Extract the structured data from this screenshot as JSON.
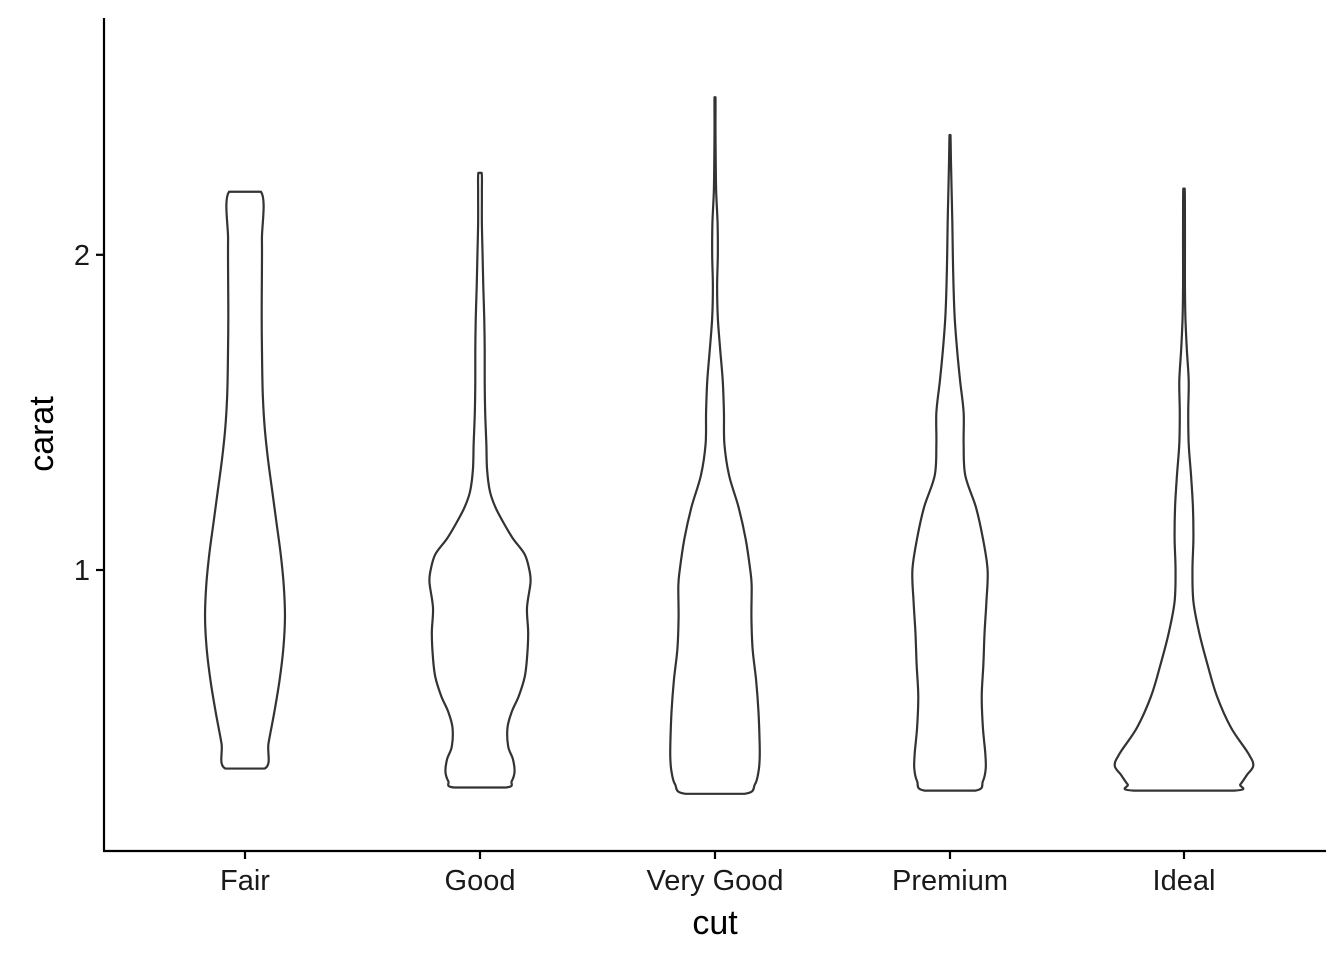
{
  "chart_data": {
    "type": "violin",
    "title": "",
    "xlabel": "cut",
    "ylabel": "carat",
    "categories": [
      "Fair",
      "Good",
      "Very Good",
      "Premium",
      "Ideal"
    ],
    "y_ticks": [
      1,
      2
    ],
    "y_tick_labels": [
      "1",
      "2"
    ],
    "ylim": [
      0.11,
      2.75
    ],
    "grid": false,
    "legend": "none",
    "colors": {
      "outline": "#333333",
      "fill": "#ffffff",
      "axis": "#000000"
    },
    "violins": [
      {
        "category": "Fair",
        "ymin": 0.37,
        "ymax": 2.2,
        "profile": [
          [
            0.37,
            0.084
          ],
          [
            0.45,
            0.1
          ],
          [
            0.55,
            0.125
          ],
          [
            0.65,
            0.147
          ],
          [
            0.75,
            0.163
          ],
          [
            0.85,
            0.17
          ],
          [
            0.95,
            0.165
          ],
          [
            1.05,
            0.152
          ],
          [
            1.15,
            0.134
          ],
          [
            1.25,
            0.116
          ],
          [
            1.35,
            0.098
          ],
          [
            1.45,
            0.084
          ],
          [
            1.55,
            0.076
          ],
          [
            1.65,
            0.073
          ],
          [
            1.8,
            0.071
          ],
          [
            1.95,
            0.072
          ],
          [
            2.05,
            0.072
          ],
          [
            2.2,
            0.068
          ]
        ]
      },
      {
        "category": "Good",
        "ymin": 0.31,
        "ymax": 2.26,
        "profile": [
          [
            0.31,
            0.11
          ],
          [
            0.33,
            0.135
          ],
          [
            0.36,
            0.147
          ],
          [
            0.4,
            0.14
          ],
          [
            0.44,
            0.12
          ],
          [
            0.5,
            0.117
          ],
          [
            0.55,
            0.135
          ],
          [
            0.6,
            0.165
          ],
          [
            0.66,
            0.19
          ],
          [
            0.72,
            0.2
          ],
          [
            0.8,
            0.205
          ],
          [
            0.88,
            0.2
          ],
          [
            0.96,
            0.215
          ],
          [
            1.0,
            0.21
          ],
          [
            1.05,
            0.19
          ],
          [
            1.1,
            0.14
          ],
          [
            1.15,
            0.1
          ],
          [
            1.2,
            0.065
          ],
          [
            1.25,
            0.042
          ],
          [
            1.32,
            0.03
          ],
          [
            1.4,
            0.027
          ],
          [
            1.5,
            0.022
          ],
          [
            1.6,
            0.02
          ],
          [
            1.7,
            0.02
          ],
          [
            1.8,
            0.018
          ],
          [
            1.9,
            0.014
          ],
          [
            2.0,
            0.011
          ],
          [
            2.1,
            0.008
          ],
          [
            2.2,
            0.008
          ],
          [
            2.26,
            0.007
          ]
        ]
      },
      {
        "category": "Very Good",
        "ymin": 0.29,
        "ymax": 2.5,
        "profile": [
          [
            0.29,
            0.126
          ],
          [
            0.32,
            0.17
          ],
          [
            0.36,
            0.185
          ],
          [
            0.4,
            0.19
          ],
          [
            0.45,
            0.19
          ],
          [
            0.55,
            0.185
          ],
          [
            0.65,
            0.175
          ],
          [
            0.75,
            0.16
          ],
          [
            0.85,
            0.155
          ],
          [
            0.95,
            0.156
          ],
          [
            1.0,
            0.15
          ],
          [
            1.1,
            0.13
          ],
          [
            1.2,
            0.1
          ],
          [
            1.3,
            0.06
          ],
          [
            1.4,
            0.04
          ],
          [
            1.5,
            0.038
          ],
          [
            1.6,
            0.033
          ],
          [
            1.7,
            0.022
          ],
          [
            1.8,
            0.012
          ],
          [
            1.9,
            0.009
          ],
          [
            2.0,
            0.012
          ],
          [
            2.1,
            0.011
          ],
          [
            2.2,
            0.005
          ],
          [
            2.3,
            0.003
          ],
          [
            2.4,
            0.002
          ],
          [
            2.5,
            0.002
          ]
        ]
      },
      {
        "category": "Premium",
        "ymin": 0.3,
        "ymax": 2.38,
        "profile": [
          [
            0.3,
            0.108
          ],
          [
            0.33,
            0.14
          ],
          [
            0.37,
            0.152
          ],
          [
            0.42,
            0.15
          ],
          [
            0.5,
            0.14
          ],
          [
            0.6,
            0.135
          ],
          [
            0.7,
            0.142
          ],
          [
            0.8,
            0.147
          ],
          [
            0.9,
            0.155
          ],
          [
            1.0,
            0.16
          ],
          [
            1.1,
            0.14
          ],
          [
            1.2,
            0.11
          ],
          [
            1.3,
            0.065
          ],
          [
            1.4,
            0.058
          ],
          [
            1.5,
            0.058
          ],
          [
            1.6,
            0.043
          ],
          [
            1.7,
            0.03
          ],
          [
            1.8,
            0.02
          ],
          [
            1.9,
            0.015
          ],
          [
            2.0,
            0.012
          ],
          [
            2.1,
            0.01
          ],
          [
            2.2,
            0.007
          ],
          [
            2.3,
            0.004
          ],
          [
            2.38,
            0.002
          ]
        ]
      },
      {
        "category": "Ideal",
        "ymin": 0.3,
        "ymax": 2.21,
        "profile": [
          [
            0.3,
            0.213
          ],
          [
            0.32,
            0.24
          ],
          [
            0.35,
            0.268
          ],
          [
            0.38,
            0.295
          ],
          [
            0.42,
            0.272
          ],
          [
            0.5,
            0.2
          ],
          [
            0.6,
            0.14
          ],
          [
            0.7,
            0.1
          ],
          [
            0.8,
            0.065
          ],
          [
            0.9,
            0.04
          ],
          [
            1.0,
            0.036
          ],
          [
            1.1,
            0.04
          ],
          [
            1.2,
            0.038
          ],
          [
            1.3,
            0.03
          ],
          [
            1.4,
            0.02
          ],
          [
            1.5,
            0.018
          ],
          [
            1.6,
            0.02
          ],
          [
            1.7,
            0.012
          ],
          [
            1.8,
            0.006
          ],
          [
            1.9,
            0.004
          ],
          [
            2.0,
            0.004
          ],
          [
            2.1,
            0.004
          ],
          [
            2.21,
            0.003
          ]
        ]
      }
    ]
  }
}
